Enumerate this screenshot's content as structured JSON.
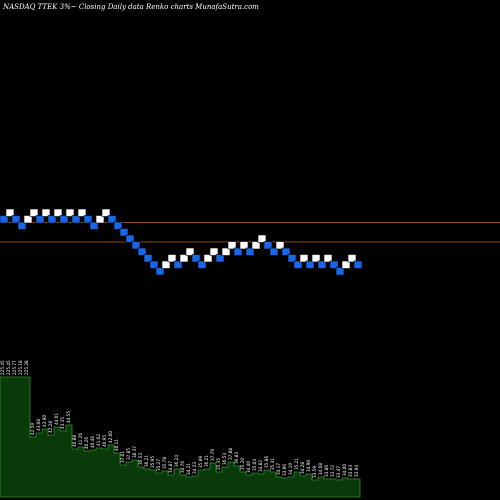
{
  "header": {
    "text": "NASDAQ TTEK 3%~  Closing Daily data  Renko  charts MunafaSutra.com"
  },
  "colors": {
    "background": "#000000",
    "brick_up": "#ffffff",
    "brick_down": "#1a66e8",
    "brick_outline": "#000000",
    "level_line": "#b8621b",
    "volume_fill": "#0a3a0a",
    "volume_stroke": "#2f8f2f",
    "label_text": "#ffffff"
  },
  "chart_data": {
    "type": "renko",
    "brick_percent": 3,
    "y_reference": "row index, 0 = highest row",
    "bricks": [
      {
        "row": 1,
        "dir": "down"
      },
      {
        "row": 0,
        "dir": "up"
      },
      {
        "row": 1,
        "dir": "down"
      },
      {
        "row": 2,
        "dir": "down"
      },
      {
        "row": 1,
        "dir": "up"
      },
      {
        "row": 0,
        "dir": "up"
      },
      {
        "row": 1,
        "dir": "down"
      },
      {
        "row": 0,
        "dir": "up"
      },
      {
        "row": 1,
        "dir": "down"
      },
      {
        "row": 0,
        "dir": "up"
      },
      {
        "row": 1,
        "dir": "down"
      },
      {
        "row": 0,
        "dir": "up"
      },
      {
        "row": 1,
        "dir": "down"
      },
      {
        "row": 0,
        "dir": "up"
      },
      {
        "row": 1,
        "dir": "down"
      },
      {
        "row": 2,
        "dir": "down"
      },
      {
        "row": 1,
        "dir": "up"
      },
      {
        "row": 0,
        "dir": "up"
      },
      {
        "row": 1,
        "dir": "down"
      },
      {
        "row": 2,
        "dir": "down"
      },
      {
        "row": 3,
        "dir": "down"
      },
      {
        "row": 4,
        "dir": "down"
      },
      {
        "row": 5,
        "dir": "down"
      },
      {
        "row": 6,
        "dir": "down"
      },
      {
        "row": 7,
        "dir": "down"
      },
      {
        "row": 8,
        "dir": "down"
      },
      {
        "row": 9,
        "dir": "down"
      },
      {
        "row": 8,
        "dir": "up"
      },
      {
        "row": 7,
        "dir": "up"
      },
      {
        "row": 8,
        "dir": "down"
      },
      {
        "row": 7,
        "dir": "up"
      },
      {
        "row": 6,
        "dir": "up"
      },
      {
        "row": 7,
        "dir": "down"
      },
      {
        "row": 8,
        "dir": "down"
      },
      {
        "row": 7,
        "dir": "up"
      },
      {
        "row": 6,
        "dir": "up"
      },
      {
        "row": 7,
        "dir": "down"
      },
      {
        "row": 6,
        "dir": "up"
      },
      {
        "row": 5,
        "dir": "up"
      },
      {
        "row": 6,
        "dir": "down"
      },
      {
        "row": 5,
        "dir": "up"
      },
      {
        "row": 6,
        "dir": "down"
      },
      {
        "row": 5,
        "dir": "up"
      },
      {
        "row": 4,
        "dir": "up"
      },
      {
        "row": 5,
        "dir": "down"
      },
      {
        "row": 6,
        "dir": "down"
      },
      {
        "row": 5,
        "dir": "up"
      },
      {
        "row": 6,
        "dir": "down"
      },
      {
        "row": 7,
        "dir": "down"
      },
      {
        "row": 8,
        "dir": "down"
      },
      {
        "row": 7,
        "dir": "up"
      },
      {
        "row": 8,
        "dir": "down"
      },
      {
        "row": 7,
        "dir": "up"
      },
      {
        "row": 8,
        "dir": "down"
      },
      {
        "row": 7,
        "dir": "up"
      },
      {
        "row": 8,
        "dir": "down"
      },
      {
        "row": 9,
        "dir": "down"
      },
      {
        "row": 8,
        "dir": "up"
      },
      {
        "row": 7,
        "dir": "up"
      },
      {
        "row": 8,
        "dir": "down"
      }
    ],
    "reference_lines_rows": [
      1.5,
      4.5
    ],
    "volume_labels": [
      "225.45",
      "225.45",
      "225.77",
      "225.18",
      "225.28",
      "42.59",
      "43.08",
      "43.90",
      "42.28",
      "44.01",
      "43.35",
      "44.55",
      "40.88",
      "41.26",
      "40.26",
      "40.46",
      "41.02",
      "40.95",
      "42.00",
      "40.11",
      "37.01",
      "37.85",
      "38.37",
      "36.53",
      "36.21",
      "35.95",
      "35.27",
      "35.78",
      "34.87",
      "36.24",
      "34.76",
      "34.21",
      "34.33",
      "35.89",
      "36.21",
      "37.79",
      "35.35",
      "36.53",
      "37.88",
      "36.83",
      "35.20",
      "34.40",
      "35.04",
      "34.82",
      "35.86",
      "35.31",
      "34.17",
      "33.96",
      "34.19",
      "35.21",
      "34.28",
      "34.90",
      "33.59",
      "34.08",
      "33.86",
      "33.72",
      "33.47",
      "34.00",
      "33.83",
      "33.94"
    ],
    "volume_values": [
      120,
      120,
      120,
      120,
      120,
      60,
      64,
      68,
      62,
      70,
      66,
      72,
      48,
      50,
      46,
      47,
      49,
      48,
      52,
      44,
      32,
      35,
      37,
      30,
      28,
      27,
      24,
      26,
      22,
      28,
      22,
      20,
      21,
      27,
      28,
      34,
      25,
      30,
      35,
      31,
      25,
      22,
      24,
      23,
      27,
      25,
      20,
      19,
      20,
      25,
      21,
      23,
      17,
      20,
      18,
      18,
      17,
      19,
      18,
      18
    ]
  }
}
